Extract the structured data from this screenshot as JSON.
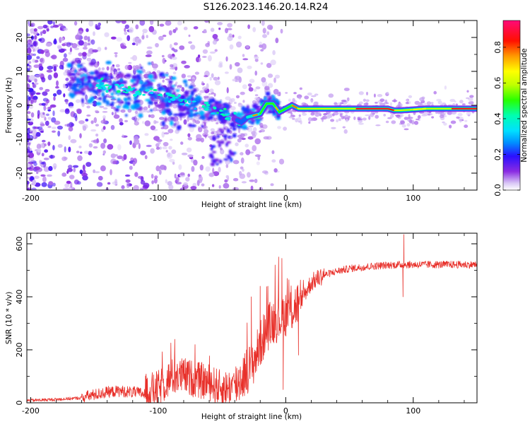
{
  "title": "S126.2023.146.20.14.R24",
  "colors": {
    "snr_line": "#e8302a",
    "axis": "#000000"
  },
  "chart_data": [
    {
      "type": "heatmap",
      "name": "spectrogram",
      "xlabel": "Height of straight line (km)",
      "ylabel": "Frequency (Hz)",
      "xlim": [
        -203,
        150
      ],
      "ylim": [
        -25,
        25
      ],
      "xticks": [
        -200,
        -100,
        0,
        100
      ],
      "xtick_labels": [
        "-200",
        "-100",
        "0",
        "100"
      ],
      "yticks": [
        20,
        10,
        0,
        -10,
        -20
      ],
      "ytick_labels": [
        "20",
        "10",
        "0",
        "-10",
        "-20"
      ],
      "ridge": [
        {
          "x": -165,
          "f": 7.5
        },
        {
          "x": -150,
          "f": 7.0
        },
        {
          "x": -140,
          "f": 5.5
        },
        {
          "x": -130,
          "f": 5.0
        },
        {
          "x": -120,
          "f": 4.5
        },
        {
          "x": -110,
          "f": 4.0
        },
        {
          "x": -100,
          "f": 3.5
        },
        {
          "x": -90,
          "f": 2.5
        },
        {
          "x": -80,
          "f": 1.0
        },
        {
          "x": -70,
          "f": 0.0
        },
        {
          "x": -60,
          "f": -1.0
        },
        {
          "x": -50,
          "f": -2.0
        },
        {
          "x": -40,
          "f": -4.0
        },
        {
          "x": -35,
          "f": -5.0
        },
        {
          "x": -30,
          "f": -3.5
        },
        {
          "x": -25,
          "f": -3.0
        },
        {
          "x": -20,
          "f": -2.5
        },
        {
          "x": -15,
          "f": 0.5
        },
        {
          "x": -10,
          "f": 0.5
        },
        {
          "x": -5,
          "f": -2.0
        },
        {
          "x": 0,
          "f": -1.0
        },
        {
          "x": 5,
          "f": 0.0
        },
        {
          "x": 10,
          "f": -1.0
        },
        {
          "x": 20,
          "f": -1.0
        },
        {
          "x": 40,
          "f": -1.0
        },
        {
          "x": 60,
          "f": -1.0
        },
        {
          "x": 80,
          "f": -1.0
        },
        {
          "x": 85,
          "f": -1.5
        },
        {
          "x": 90,
          "f": -1.5
        },
        {
          "x": 110,
          "f": -1.0
        },
        {
          "x": 130,
          "f": -1.0
        },
        {
          "x": 150,
          "f": -1.0
        }
      ],
      "colorbar": {
        "label": "Normalized spectral amplitude",
        "range": [
          0.0,
          0.95
        ],
        "ticks": [
          0.0,
          0.2,
          0.4,
          0.6,
          0.8
        ],
        "tick_labels": [
          "0.0",
          "0.2",
          "0.4",
          "0.6",
          "0.8"
        ]
      }
    },
    {
      "type": "line",
      "name": "snr",
      "xlabel": "Height of straight line (km)",
      "ylabel": "SNR (10 * v/v)",
      "xlim": [
        -203,
        150
      ],
      "ylim": [
        0,
        640
      ],
      "xticks": [
        -200,
        -100,
        0,
        100
      ],
      "xtick_labels": [
        "-200",
        "-100",
        "0",
        "100"
      ],
      "yticks": [
        0,
        200,
        400,
        600
      ],
      "ytick_labels": [
        "0",
        "200",
        "400",
        "600"
      ],
      "envelope": {
        "x": [
          -203,
          -180,
          -160,
          -150,
          -140,
          -130,
          -120,
          -110,
          -100,
          -90,
          -80,
          -70,
          -60,
          -50,
          -40,
          -30,
          -25,
          -20,
          -15,
          -10,
          -5,
          0,
          5,
          10,
          15,
          20,
          30,
          40,
          50,
          60,
          70,
          80,
          90,
          100,
          110,
          120,
          130,
          140,
          150
        ],
        "y": [
          8,
          12,
          18,
          28,
          38,
          42,
          38,
          32,
          45,
          90,
          95,
          80,
          70,
          45,
          55,
          115,
          150,
          210,
          270,
          300,
          310,
          330,
          345,
          370,
          410,
          450,
          480,
          495,
          505,
          510,
          515,
          518,
          520,
          520,
          520,
          520,
          520,
          520,
          520
        ]
      },
      "noise": [
        {
          "x0": -203,
          "x1": -160,
          "amp": 6
        },
        {
          "x0": -160,
          "x1": -110,
          "amp": 22
        },
        {
          "x0": -110,
          "x1": -40,
          "amp": 70
        },
        {
          "x0": -40,
          "x1": 10,
          "amp": 90
        },
        {
          "x0": 10,
          "x1": 30,
          "amp": 35
        },
        {
          "x0": 30,
          "x1": 150,
          "amp": 14
        }
      ],
      "spikes": [
        {
          "x": -27,
          "y": 400
        },
        {
          "x": -20,
          "y": 440
        },
        {
          "x": -14,
          "y": 440
        },
        {
          "x": -3,
          "y": 545
        },
        {
          "x": -2,
          "y": 50
        },
        {
          "x": 10,
          "y": 180
        },
        {
          "x": 92,
          "y": 400
        },
        {
          "x": 92.7,
          "y": 635
        }
      ]
    }
  ]
}
